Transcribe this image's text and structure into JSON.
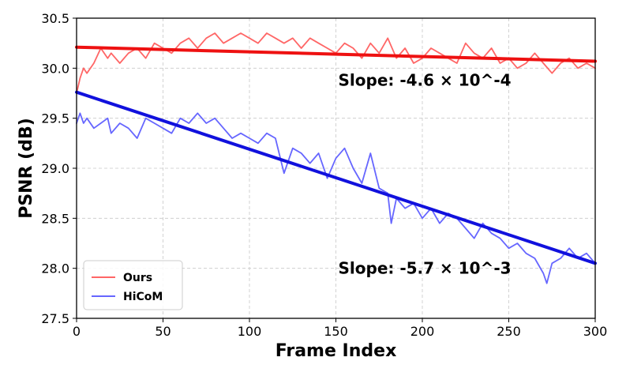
{
  "chart_data": {
    "type": "line",
    "xlabel": "Frame Index",
    "ylabel": "PSNR (dB)",
    "xlim": [
      0,
      300
    ],
    "ylim": [
      27.5,
      30.5
    ],
    "xticks": [
      0,
      50,
      100,
      150,
      200,
      250,
      300
    ],
    "xtick_labels": [
      "0",
      "50",
      "100",
      "150",
      "200",
      "250",
      "300"
    ],
    "yticks": [
      27.5,
      28.0,
      28.5,
      29.0,
      29.5,
      30.0,
      30.5
    ],
    "ytick_labels": [
      "27.5",
      "28.0",
      "28.5",
      "29.0",
      "29.5",
      "30.0",
      "30.5"
    ],
    "grid": true,
    "legend_position": "lower-left",
    "series": [
      {
        "name": "Ours",
        "color": "#ff6666",
        "x": [
          0,
          2,
          4,
          6,
          10,
          14,
          18,
          20,
          25,
          30,
          35,
          40,
          45,
          50,
          55,
          60,
          65,
          70,
          75,
          80,
          85,
          90,
          95,
          100,
          105,
          110,
          115,
          120,
          125,
          130,
          135,
          140,
          145,
          150,
          155,
          160,
          165,
          170,
          175,
          180,
          185,
          190,
          195,
          200,
          205,
          210,
          215,
          220,
          225,
          230,
          235,
          240,
          245,
          250,
          255,
          260,
          265,
          270,
          275,
          280,
          285,
          290,
          295,
          300
        ],
        "values": [
          29.75,
          29.9,
          30.0,
          29.95,
          30.05,
          30.2,
          30.1,
          30.15,
          30.05,
          30.15,
          30.2,
          30.1,
          30.25,
          30.2,
          30.15,
          30.25,
          30.3,
          30.2,
          30.3,
          30.35,
          30.25,
          30.3,
          30.35,
          30.3,
          30.25,
          30.35,
          30.3,
          30.25,
          30.3,
          30.2,
          30.3,
          30.25,
          30.2,
          30.15,
          30.25,
          30.2,
          30.1,
          30.25,
          30.15,
          30.3,
          30.1,
          30.2,
          30.05,
          30.1,
          30.2,
          30.15,
          30.1,
          30.05,
          30.25,
          30.15,
          30.1,
          30.2,
          30.05,
          30.1,
          30.0,
          30.05,
          30.15,
          30.05,
          29.95,
          30.05,
          30.1,
          30.0,
          30.05,
          30.0
        ]
      },
      {
        "name": "HiCoM",
        "color": "#6666ff",
        "x": [
          0,
          2,
          4,
          6,
          10,
          14,
          18,
          20,
          25,
          30,
          35,
          40,
          45,
          50,
          55,
          60,
          65,
          70,
          75,
          80,
          85,
          90,
          95,
          100,
          105,
          110,
          115,
          120,
          125,
          130,
          135,
          140,
          145,
          150,
          155,
          160,
          165,
          170,
          175,
          180,
          182,
          185,
          190,
          195,
          200,
          205,
          210,
          215,
          220,
          225,
          230,
          235,
          240,
          245,
          250,
          255,
          260,
          265,
          270,
          272,
          275,
          280,
          285,
          290,
          295,
          300
        ],
        "values": [
          29.45,
          29.55,
          29.45,
          29.5,
          29.4,
          29.45,
          29.5,
          29.35,
          29.45,
          29.4,
          29.3,
          29.5,
          29.45,
          29.4,
          29.35,
          29.5,
          29.45,
          29.55,
          29.45,
          29.5,
          29.4,
          29.3,
          29.35,
          29.3,
          29.25,
          29.35,
          29.3,
          28.95,
          29.2,
          29.15,
          29.05,
          29.15,
          28.9,
          29.1,
          29.2,
          29.0,
          28.85,
          29.15,
          28.8,
          28.75,
          28.45,
          28.7,
          28.6,
          28.65,
          28.5,
          28.6,
          28.45,
          28.55,
          28.5,
          28.4,
          28.3,
          28.45,
          28.35,
          28.3,
          28.2,
          28.25,
          28.15,
          28.1,
          27.95,
          27.85,
          28.05,
          28.1,
          28.2,
          28.1,
          28.15,
          28.05
        ]
      },
      {
        "name": "",
        "color": "#ee1111",
        "x": [
          0,
          300
        ],
        "values": [
          30.21,
          30.07
        ]
      },
      {
        "name": "",
        "color": "#1111dd",
        "x": [
          0,
          300
        ],
        "values": [
          29.76,
          28.05
        ]
      }
    ],
    "annotations": [
      {
        "text": "Slope: -4.6 × 10^-4",
        "x": 150,
        "y": 29.88
      },
      {
        "text": "Slope: -5.7 × 10^-3",
        "x": 150,
        "y": 28.0
      }
    ]
  }
}
